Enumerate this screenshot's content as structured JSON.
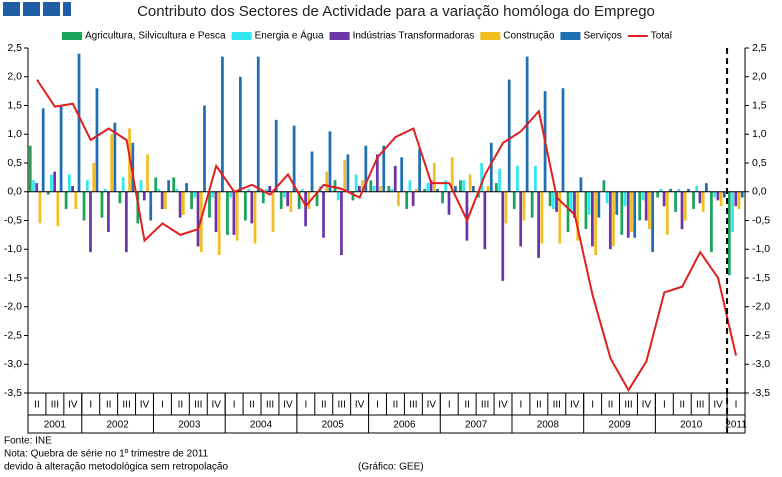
{
  "chart_data": {
    "type": "bar",
    "title": "Contributo dos Sectores de Actividade para a variação homóloga do Emprego",
    "categories": [
      "II",
      "III",
      "IV",
      "I",
      "II",
      "III",
      "IV",
      "I",
      "II",
      "III",
      "IV",
      "I",
      "II",
      "III",
      "IV",
      "I",
      "II",
      "III",
      "IV",
      "I",
      "II",
      "III",
      "IV",
      "I",
      "II",
      "III",
      "IV",
      "I",
      "II",
      "III",
      "IV",
      "I",
      "II",
      "III",
      "IV",
      "I",
      "II",
      "III",
      "IV",
      "I"
    ],
    "years": [
      "2001",
      "2001",
      "2001",
      "2002",
      "2002",
      "2002",
      "2002",
      "2003",
      "2003",
      "2003",
      "2003",
      "2004",
      "2004",
      "2004",
      "2004",
      "2005",
      "2005",
      "2005",
      "2005",
      "2006",
      "2006",
      "2006",
      "2006",
      "2007",
      "2007",
      "2007",
      "2007",
      "2008",
      "2008",
      "2008",
      "2008",
      "2009",
      "2009",
      "2009",
      "2009",
      "2010",
      "2010",
      "2010",
      "2010",
      "2011"
    ],
    "series": [
      {
        "name": "Agricultura, Silvicultura e Pesca",
        "type": "bar",
        "color": "#1aa35a",
        "values": [
          0.8,
          -0.05,
          -0.3,
          -0.5,
          -0.45,
          -0.2,
          -0.55,
          0.25,
          0.25,
          -0.3,
          -0.45,
          -0.75,
          -0.5,
          -0.2,
          -0.3,
          -0.3,
          -0.25,
          0.2,
          -0.15,
          0.2,
          0.1,
          -0.3,
          0.05,
          -0.2,
          0.2,
          -0.1,
          0.15,
          -0.3,
          -0.45,
          -0.25,
          -0.7,
          -0.65,
          0.2,
          -0.75,
          -0.5,
          -0.1,
          -0.35,
          -0.3,
          -1.05,
          -1.45
        ]
      },
      {
        "name": "Energia e Água",
        "type": "bar",
        "color": "#33e6f0",
        "values": [
          0.2,
          0.3,
          0.3,
          0.2,
          0.05,
          0.25,
          0.2,
          0.05,
          0.05,
          -0.1,
          -0.1,
          -0.1,
          0.05,
          0.05,
          -0.1,
          0.05,
          0.1,
          -0.15,
          0.3,
          0.1,
          0.05,
          0.2,
          0.15,
          0.2,
          0.2,
          0.5,
          0.4,
          0.45,
          0.45,
          -0.3,
          -0.35,
          -0.4,
          -0.2,
          -0.25,
          -0.15,
          0.05,
          0.05,
          0.1,
          -0.1,
          -0.7
        ]
      },
      {
        "name": "Indústrias Transformadoras",
        "type": "bar",
        "color": "#6a35a8",
        "values": [
          0.15,
          0.35,
          0.1,
          -1.05,
          -0.7,
          -1.05,
          -0.15,
          -0.3,
          -0.45,
          -0.95,
          -0.7,
          -0.75,
          -0.55,
          0.1,
          -0.25,
          -0.6,
          -0.8,
          -1.1,
          0.1,
          0.65,
          0.45,
          -0.25,
          0.2,
          -0.4,
          -0.85,
          -1.0,
          -1.55,
          -0.95,
          -1.15,
          -0.35,
          -0.45,
          -0.95,
          -1.0,
          -0.8,
          -0.5,
          -0.25,
          -0.65,
          -0.2,
          -0.15,
          -0.25
        ]
      },
      {
        "name": "Construção",
        "type": "bar",
        "color": "#f2be22",
        "values": [
          -0.55,
          -0.6,
          -0.3,
          0.5,
          1.0,
          1.1,
          0.65,
          -0.3,
          -0.4,
          -1.05,
          -1.1,
          -0.85,
          -0.9,
          -0.7,
          -0.35,
          -0.3,
          0.35,
          0.55,
          0.2,
          0.1,
          -0.25,
          0.05,
          0.5,
          0.6,
          0.3,
          0.1,
          -0.55,
          -0.5,
          -0.9,
          -0.9,
          -0.85,
          -1.1,
          -0.95,
          -0.7,
          -0.65,
          -0.75,
          -0.5,
          -0.35,
          -0.25,
          -0.3
        ]
      },
      {
        "name": "Serviços",
        "type": "bar",
        "color": "#1f6fb5",
        "values": [
          1.45,
          1.5,
          2.4,
          1.8,
          1.2,
          0.85,
          -0.5,
          0.2,
          0.15,
          1.5,
          2.35,
          2.0,
          2.35,
          1.25,
          1.15,
          0.7,
          1.05,
          0.65,
          0.8,
          0.8,
          0.6,
          0.75,
          0.05,
          0.1,
          0.1,
          0.85,
          1.95,
          2.35,
          1.75,
          1.8,
          0.25,
          -0.45,
          -0.4,
          -0.8,
          -1.05,
          0.05,
          0.05,
          0.15,
          -0.1,
          -0.1
        ]
      },
      {
        "name": "Total",
        "type": "line",
        "color": "#e02020",
        "values": [
          1.95,
          1.48,
          1.53,
          0.9,
          1.1,
          0.9,
          -0.85,
          -0.55,
          -0.75,
          -0.65,
          0.45,
          0.0,
          0.12,
          -0.05,
          0.3,
          -0.25,
          0.12,
          0.05,
          -0.1,
          0.6,
          0.95,
          1.1,
          0.15,
          0.15,
          -0.5,
          0.3,
          0.85,
          1.05,
          1.4,
          -0.1,
          -0.4,
          -1.8,
          -2.9,
          -3.45,
          -2.95,
          -1.75,
          -1.65,
          -1.05,
          -1.5,
          -2.85
        ]
      }
    ],
    "ylim": [
      -3.5,
      2.5
    ],
    "yticks": [
      {
        "value": -3.5,
        "label": "-3,5"
      },
      {
        "value": -3,
        "label": "-3,0"
      },
      {
        "value": -2.5,
        "label": "-2,5"
      },
      {
        "value": -2,
        "label": "-2,0"
      },
      {
        "value": -1.5,
        "label": "-1,5"
      },
      {
        "value": -1,
        "label": "-1,0"
      },
      {
        "value": -0.5,
        "label": "-0,5"
      },
      {
        "value": 0,
        "label": "0,0"
      },
      {
        "value": 0.5,
        "label": "0,5"
      },
      {
        "value": 1,
        "label": "1,0"
      },
      {
        "value": 1.5,
        "label": "1,5"
      },
      {
        "value": 2,
        "label": "2,0"
      },
      {
        "value": 2.5,
        "label": "2,5"
      }
    ],
    "grid": false,
    "notes": [
      "Fonte:  INE",
      "Nota: Quebra de série no 1º trimestre de 2011",
      "devido à alteração metodológica sem retropolação"
    ],
    "credit": "(Gráfico: GEE)"
  }
}
